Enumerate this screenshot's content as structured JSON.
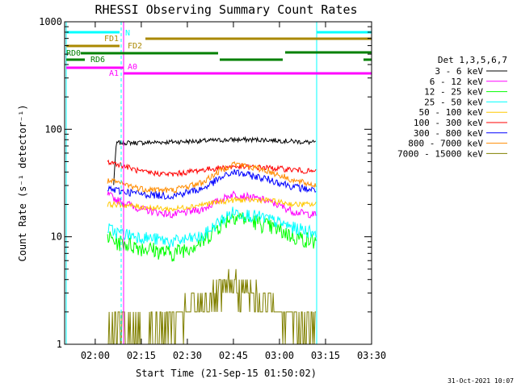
{
  "chart_data": {
    "type": "line",
    "title": "RHESSI Observing Summary Count Rates",
    "xlabel": "Start Time (21-Sep-15 01:50:02)",
    "ylabel": "Count Rate (s⁻¹ detector⁻¹)",
    "y_scale": "log",
    "ylim": [
      1,
      1000
    ],
    "xlim": [
      "01:50:02",
      "03:30"
    ],
    "x_ticks": [
      "02:00",
      "02:15",
      "02:30",
      "02:45",
      "03:00",
      "03:15",
      "03:30"
    ],
    "y_ticks": [
      "1",
      "10",
      "100",
      "1000"
    ],
    "grid": false,
    "legend_placement": "right",
    "legend_title": "Det 1,3,5,6,7",
    "series": [
      {
        "name": "3 - 6 keV",
        "color": "#000000",
        "x": [
          "02:06",
          "02:07",
          "02:15",
          "02:30",
          "02:45",
          "02:55",
          "03:05",
          "03:12"
        ],
        "values": [
          30,
          75,
          75,
          77,
          80,
          80,
          77,
          75
        ]
      },
      {
        "name": "6 - 12 keV",
        "color": "#ff00ff",
        "x": [
          "02:04",
          "02:07",
          "02:15",
          "02:25",
          "02:35",
          "02:45",
          "02:55",
          "03:05",
          "03:12"
        ],
        "values": [
          25,
          22,
          18,
          16,
          18,
          25,
          22,
          17,
          16
        ]
      },
      {
        "name": "12 - 25 keV",
        "color": "#00ff00",
        "x": [
          "02:04",
          "02:07",
          "02:15",
          "02:25",
          "02:35",
          "02:45",
          "02:55",
          "03:05",
          "03:12"
        ],
        "values": [
          10,
          9,
          8,
          7,
          9,
          16,
          13,
          10,
          9
        ]
      },
      {
        "name": "25 - 50 keV",
        "color": "#00ffff",
        "x": [
          "02:04",
          "02:07",
          "02:15",
          "02:25",
          "02:35",
          "02:45",
          "02:55",
          "03:05",
          "03:12"
        ],
        "values": [
          12,
          11,
          10,
          9,
          10,
          17,
          15,
          12,
          11
        ]
      },
      {
        "name": "50 - 100 keV",
        "color": "#ffc800",
        "x": [
          "02:04",
          "02:07",
          "02:15",
          "02:25",
          "02:35",
          "02:45",
          "02:55",
          "03:05",
          "03:12"
        ],
        "values": [
          20,
          20,
          19,
          18,
          20,
          22,
          22,
          20,
          20
        ]
      },
      {
        "name": "100 - 300 keV",
        "color": "#ff0000",
        "x": [
          "02:04",
          "02:07",
          "02:15",
          "02:25",
          "02:35",
          "02:45",
          "02:55",
          "03:05",
          "03:12"
        ],
        "values": [
          50,
          48,
          40,
          38,
          42,
          45,
          44,
          42,
          40
        ]
      },
      {
        "name": "300 - 800 keV",
        "color": "#0000ff",
        "x": [
          "02:04",
          "02:07",
          "02:15",
          "02:25",
          "02:35",
          "02:45",
          "02:55",
          "03:05",
          "03:12"
        ],
        "values": [
          28,
          27,
          25,
          24,
          28,
          40,
          35,
          29,
          27
        ]
      },
      {
        "name": "800 - 7000 keV",
        "color": "#ff8c00",
        "x": [
          "02:04",
          "02:07",
          "02:15",
          "02:25",
          "02:35",
          "02:45",
          "02:55",
          "03:05",
          "03:12"
        ],
        "values": [
          33,
          32,
          28,
          27,
          32,
          48,
          42,
          33,
          30
        ]
      },
      {
        "name": "7000 - 15000 keV",
        "color": "#808000",
        "x": [
          "02:04",
          "02:07",
          "02:15",
          "02:25",
          "02:35",
          "02:45",
          "02:55",
          "03:05",
          "03:12"
        ],
        "values": [
          1.5,
          1.5,
          1.3,
          1.6,
          2.5,
          3.5,
          2.5,
          1.7,
          1.5
        ]
      }
    ],
    "flags": [
      {
        "label": "N",
        "color": "#00ffff"
      },
      {
        "label": "FD1",
        "color": "#aa8800"
      },
      {
        "label": "FD2",
        "color": "#aa8800"
      },
      {
        "label": "RD0",
        "color": "#008000"
      },
      {
        "label": "RD6",
        "color": "#008000"
      },
      {
        "label": "A0",
        "color": "#ff00ff"
      },
      {
        "label": "A1",
        "color": "#ff00ff"
      }
    ],
    "date_stamp": "31-Oct-2021 10:07"
  }
}
